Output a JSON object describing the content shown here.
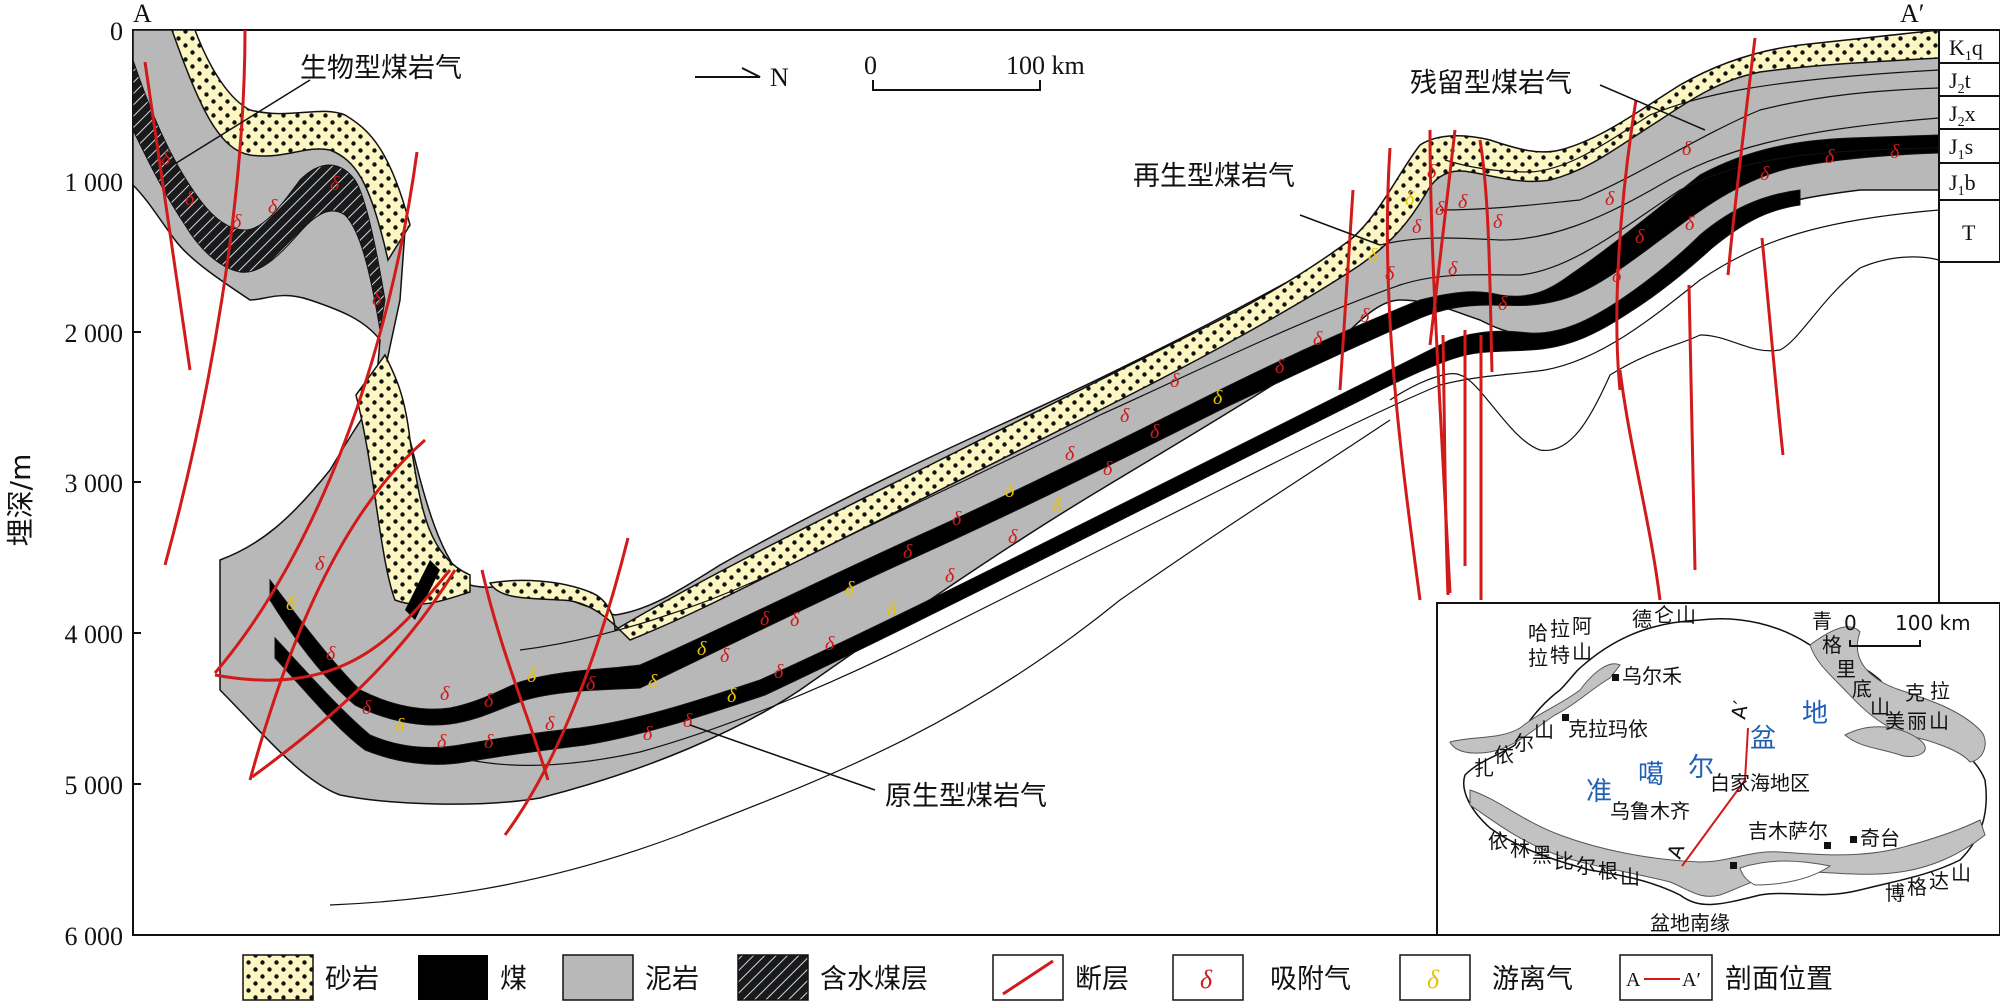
{
  "section": {
    "start_label": "A",
    "end_label": "A′",
    "north_label": "N",
    "scale_start": "0",
    "scale_end": "100 km"
  },
  "y_axis": {
    "label": "埋深/m",
    "ticks": [
      "0",
      "1 000",
      "2 000",
      "3 000",
      "4 000",
      "5 000",
      "6 000"
    ]
  },
  "strata": [
    "K₁q",
    "J₂t",
    "J₂x",
    "J₁s",
    "J₁b",
    "T"
  ],
  "strata_parts": [
    {
      "main": "K",
      "sub": "1",
      "suf": "q"
    },
    {
      "main": "J",
      "sub": "2",
      "suf": "t"
    },
    {
      "main": "J",
      "sub": "2",
      "suf": "x"
    },
    {
      "main": "J",
      "sub": "1",
      "suf": "s"
    },
    {
      "main": "J",
      "sub": "1",
      "suf": "b"
    },
    {
      "main": "T",
      "sub": "",
      "suf": ""
    }
  ],
  "annotations": {
    "biogenic": "生物型煤岩气",
    "residual": "残留型煤岩气",
    "regenerated": "再生型煤岩气",
    "primary": "原生型煤岩气"
  },
  "gas_symbol": "δ",
  "legend": [
    {
      "key": "sandstone",
      "label": "砂岩"
    },
    {
      "key": "coal",
      "label": "煤"
    },
    {
      "key": "mudstone",
      "label": "泥岩"
    },
    {
      "key": "water_coal",
      "label": "含水煤层"
    },
    {
      "key": "fault",
      "label": "断层"
    },
    {
      "key": "adsorbed",
      "label": "吸附气"
    },
    {
      "key": "free",
      "label": "游离气"
    },
    {
      "key": "profile",
      "label": "剖面位置"
    }
  ],
  "legend_profile_a": "A",
  "legend_profile_b": "A′",
  "inset_map": {
    "scale_start": "0",
    "scale_end": "100 km",
    "basin_chars": [
      "准",
      "噶",
      "尔",
      "盆",
      "地"
    ],
    "cities": [
      "乌尔禾",
      "克拉玛依",
      "乌鲁木齐",
      "吉木萨尔",
      "奇台",
      "白家海地区"
    ],
    "mountains_chars": {
      "hala": [
        "哈",
        "拉",
        "阿",
        "拉",
        "特",
        "山"
      ],
      "delun": [
        "德",
        "仑",
        "山"
      ],
      "qingge": [
        "青",
        "格",
        "里",
        "底",
        "山"
      ],
      "kela": [
        "克",
        "拉",
        "美",
        "丽",
        "山"
      ],
      "zhayi": [
        "扎",
        "依",
        "尔",
        "山"
      ],
      "yilin": [
        "依",
        "林",
        "黑",
        "比",
        "尔",
        "根",
        "山"
      ],
      "boge": [
        "博",
        "格",
        "达",
        "山"
      ]
    },
    "south_margin": "盆地南缘",
    "section_a": "A",
    "section_b": "A′"
  },
  "colors": {
    "sandstone": "#fbf6c2",
    "coal": "#000000",
    "mudstone": "#b8b8b8",
    "fault": "#d11a1a",
    "adsorbed": "#d11a1a",
    "free": "#e6c300",
    "basin_text": "#1f5fb4"
  }
}
